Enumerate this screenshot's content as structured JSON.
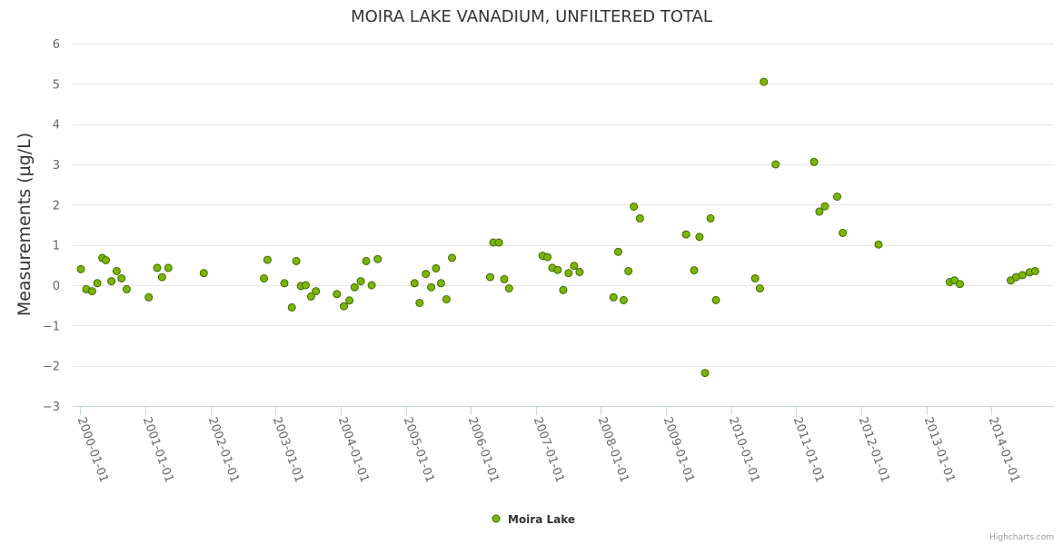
{
  "chart_data": {
    "type": "scatter",
    "title": "MOIRA LAKE VANADIUM, UNFILTERED TOTAL",
    "xlabel": "",
    "ylabel": "Measurements (µg/L)",
    "ylim": [
      -3,
      6
    ],
    "yticks": [
      -3,
      -2,
      -1,
      0,
      1,
      2,
      3,
      4,
      5,
      6
    ],
    "xlim": [
      "1999-11-20",
      "2014-12-18"
    ],
    "xticks": [
      "2000-01-01",
      "2001-01-01",
      "2002-01-01",
      "2003-01-01",
      "2004-01-01",
      "2005-01-01",
      "2006-01-01",
      "2007-01-01",
      "2008-01-01",
      "2009-01-01",
      "2010-01-01",
      "2011-01-01",
      "2012-01-01",
      "2013-01-01",
      "2014-01-01"
    ],
    "grid": true,
    "legend_position": "bottom-center",
    "colors": {
      "marker_fill": "#7cb500",
      "marker_stroke": "#3d6b00",
      "gridline": "#e6e6e6",
      "axis": "#ccd6eb"
    },
    "series": [
      {
        "name": "Moira Lake",
        "points": [
          {
            "x": "2000-01-05",
            "y": 0.4
          },
          {
            "x": "2000-02-04",
            "y": -0.1
          },
          {
            "x": "2000-03-08",
            "y": -0.15
          },
          {
            "x": "2000-04-06",
            "y": 0.05
          },
          {
            "x": "2000-05-04",
            "y": 0.68
          },
          {
            "x": "2000-05-24",
            "y": 0.62
          },
          {
            "x": "2000-06-24",
            "y": 0.1
          },
          {
            "x": "2000-07-24",
            "y": 0.35
          },
          {
            "x": "2000-08-20",
            "y": 0.17
          },
          {
            "x": "2000-09-18",
            "y": -0.1
          },
          {
            "x": "2001-01-20",
            "y": -0.3
          },
          {
            "x": "2001-03-08",
            "y": 0.43
          },
          {
            "x": "2001-04-05",
            "y": 0.2
          },
          {
            "x": "2001-05-10",
            "y": 0.43
          },
          {
            "x": "2001-11-25",
            "y": 0.3
          },
          {
            "x": "2002-10-29",
            "y": 0.17
          },
          {
            "x": "2002-11-17",
            "y": 0.63
          },
          {
            "x": "2003-02-20",
            "y": 0.05
          },
          {
            "x": "2003-04-03",
            "y": -0.55
          },
          {
            "x": "2003-04-28",
            "y": 0.6
          },
          {
            "x": "2003-05-24",
            "y": -0.02
          },
          {
            "x": "2003-06-20",
            "y": 0.0
          },
          {
            "x": "2003-07-20",
            "y": -0.28
          },
          {
            "x": "2003-08-16",
            "y": -0.15
          },
          {
            "x": "2003-12-12",
            "y": -0.22
          },
          {
            "x": "2004-01-20",
            "y": -0.52
          },
          {
            "x": "2004-02-20",
            "y": -0.38
          },
          {
            "x": "2004-03-20",
            "y": -0.05
          },
          {
            "x": "2004-04-24",
            "y": 0.1
          },
          {
            "x": "2004-05-24",
            "y": 0.6
          },
          {
            "x": "2004-06-24",
            "y": 0.0
          },
          {
            "x": "2004-07-28",
            "y": 0.65
          },
          {
            "x": "2005-02-20",
            "y": 0.05
          },
          {
            "x": "2005-03-20",
            "y": -0.44
          },
          {
            "x": "2005-04-24",
            "y": 0.28
          },
          {
            "x": "2005-05-24",
            "y": -0.05
          },
          {
            "x": "2005-06-20",
            "y": 0.42
          },
          {
            "x": "2005-07-18",
            "y": 0.05
          },
          {
            "x": "2005-08-18",
            "y": -0.35
          },
          {
            "x": "2005-09-18",
            "y": 0.68
          },
          {
            "x": "2006-04-20",
            "y": 0.2
          },
          {
            "x": "2006-05-08",
            "y": 1.06
          },
          {
            "x": "2006-06-08",
            "y": 1.06
          },
          {
            "x": "2006-07-08",
            "y": 0.15
          },
          {
            "x": "2006-08-04",
            "y": -0.08
          },
          {
            "x": "2007-02-08",
            "y": 0.73
          },
          {
            "x": "2007-03-08",
            "y": 0.7
          },
          {
            "x": "2007-04-04",
            "y": 0.43
          },
          {
            "x": "2007-05-04",
            "y": 0.38
          },
          {
            "x": "2007-06-04",
            "y": -0.12
          },
          {
            "x": "2007-07-04",
            "y": 0.3
          },
          {
            "x": "2007-08-04",
            "y": 0.48
          },
          {
            "x": "2007-09-04",
            "y": 0.33
          },
          {
            "x": "2008-03-12",
            "y": -0.3
          },
          {
            "x": "2008-04-08",
            "y": 0.83
          },
          {
            "x": "2008-05-08",
            "y": -0.37
          },
          {
            "x": "2008-06-04",
            "y": 0.35
          },
          {
            "x": "2008-07-04",
            "y": 1.95
          },
          {
            "x": "2008-08-08",
            "y": 1.66
          },
          {
            "x": "2009-04-24",
            "y": 1.26
          },
          {
            "x": "2009-06-08",
            "y": 0.37
          },
          {
            "x": "2009-07-08",
            "y": 1.2
          },
          {
            "x": "2009-08-08",
            "y": -2.18
          },
          {
            "x": "2009-09-08",
            "y": 1.66
          },
          {
            "x": "2009-10-08",
            "y": -0.37
          },
          {
            "x": "2010-05-16",
            "y": 0.17
          },
          {
            "x": "2010-06-12",
            "y": -0.08
          },
          {
            "x": "2010-07-04",
            "y": 5.05
          },
          {
            "x": "2010-09-08",
            "y": 3.0
          },
          {
            "x": "2011-04-12",
            "y": 3.06
          },
          {
            "x": "2011-05-12",
            "y": 1.83
          },
          {
            "x": "2011-06-12",
            "y": 1.96
          },
          {
            "x": "2011-08-20",
            "y": 2.2
          },
          {
            "x": "2011-09-20",
            "y": 1.3
          },
          {
            "x": "2012-04-08",
            "y": 1.01
          },
          {
            "x": "2013-05-12",
            "y": 0.08
          },
          {
            "x": "2013-06-08",
            "y": 0.12
          },
          {
            "x": "2013-07-08",
            "y": 0.03
          },
          {
            "x": "2014-04-20",
            "y": 0.12
          },
          {
            "x": "2014-05-20",
            "y": 0.2
          },
          {
            "x": "2014-06-24",
            "y": 0.25
          },
          {
            "x": "2014-08-04",
            "y": 0.32
          },
          {
            "x": "2014-09-04",
            "y": 0.35
          }
        ]
      }
    ]
  },
  "credits": "Highcharts.com"
}
